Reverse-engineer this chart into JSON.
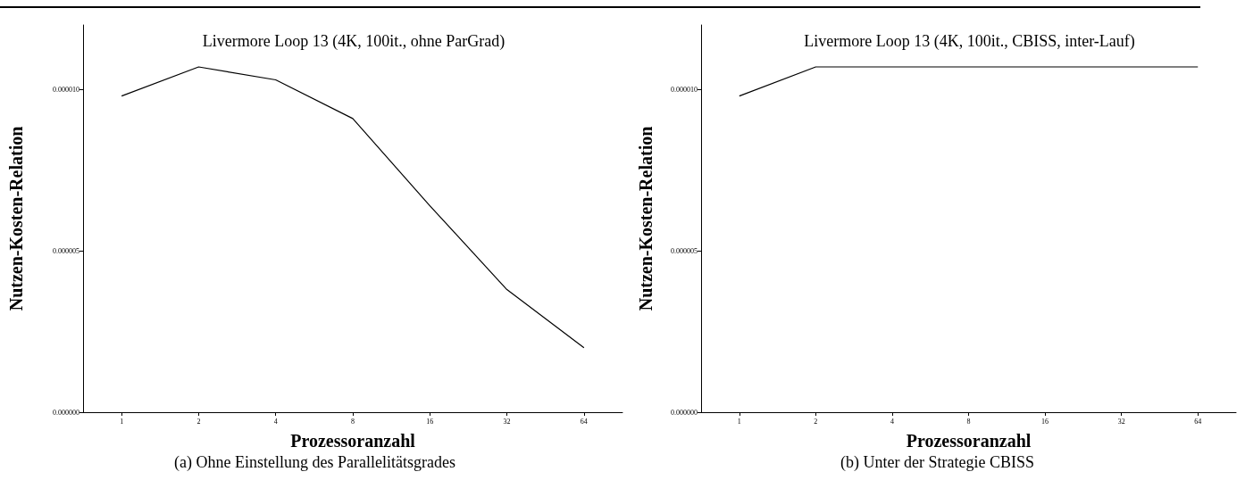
{
  "chart_data": [
    {
      "type": "line",
      "title": "Livermore Loop 13 (4K, 100it., ohne ParGrad)",
      "xlabel": "Prozessoranzahl",
      "ylabel": "Nutzen-Kosten-Relation",
      "categories": [
        "1",
        "2",
        "4",
        "8",
        "16",
        "32",
        "64"
      ],
      "series": [
        {
          "color": "#000000",
          "values": [
            9.8e-06,
            1.07e-05,
            1.03e-05,
            9.1e-06,
            6.4e-06,
            3.8e-06,
            2e-06
          ]
        }
      ],
      "ylim": [
        0,
        1.2e-05
      ],
      "yticks": [
        {
          "value": 0,
          "label": "0.000000"
        },
        {
          "value": 5e-06,
          "label": "0.000005"
        },
        {
          "value": 1e-05,
          "label": "0.000010"
        }
      ],
      "grid": false,
      "marker": "none",
      "line_style": "solid",
      "annotations": [
        "(a) Ohne Einstellung des Parallelitätsgrades"
      ]
    },
    {
      "type": "line",
      "title": "Livermore Loop 13 (4K, 100it., CBISS, inter-Lauf)",
      "xlabel": "Prozessoranzahl",
      "ylabel": "Nutzen-Kosten-Relation",
      "categories": [
        "1",
        "2",
        "4",
        "8",
        "16",
        "32",
        "64"
      ],
      "series": [
        {
          "color": "#000000",
          "values": [
            9.8e-06,
            1.07e-05,
            1.07e-05,
            1.07e-05,
            1.07e-05,
            1.07e-05,
            1.07e-05
          ]
        }
      ],
      "ylim": [
        0,
        1.2e-05
      ],
      "yticks": [
        {
          "value": 0,
          "label": "0.000000"
        },
        {
          "value": 5e-06,
          "label": "0.000005"
        },
        {
          "value": 1e-05,
          "label": "0.000010"
        }
      ],
      "grid": false,
      "marker": "none",
      "line_style": "solid",
      "annotations": [
        "(b) Unter der Strategie CBISS"
      ]
    }
  ]
}
